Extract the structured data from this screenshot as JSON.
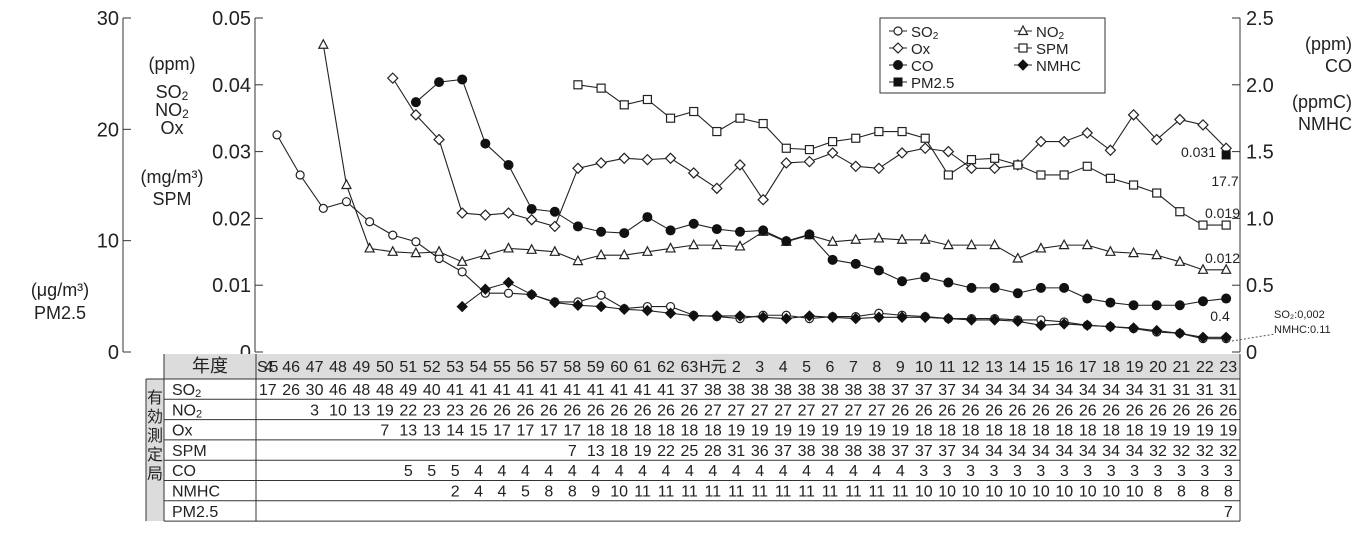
{
  "chart_data": {
    "type": "line",
    "axes": {
      "outer_left": {
        "ticks": [
          "0",
          "10",
          "20",
          "30"
        ],
        "range": [
          0,
          30
        ],
        "unit_label": "(μg/m³)",
        "series_label": "PM2.5"
      },
      "inner_left": {
        "ticks": [
          "0",
          "0.01",
          "0.02",
          "0.03",
          "0.04",
          "0.05"
        ],
        "range": [
          0,
          0.05
        ],
        "unit_label_ppm": "(ppm)",
        "series_labels_ppm": [
          "SO2",
          "NO2",
          "Ox"
        ],
        "unit_label_mg": "(mg/m³)",
        "series_label_mg": "SPM"
      },
      "right": {
        "ticks": [
          "0",
          "0.5",
          "1.0",
          "1.5",
          "2.0",
          "2.5"
        ],
        "range": [
          0,
          2.5
        ],
        "unit_label_co": "(ppm)",
        "series_label_co": "CO",
        "unit_label_nmhc": "(ppmC)",
        "series_label_nmhc": "NMHC"
      }
    },
    "x": [
      "S45",
      "46",
      "47",
      "48",
      "49",
      "50",
      "51",
      "52",
      "53",
      "54",
      "55",
      "56",
      "57",
      "58",
      "59",
      "60",
      "61",
      "62",
      "63",
      "H元",
      "2",
      "3",
      "4",
      "5",
      "6",
      "7",
      "8",
      "9",
      "10",
      "11",
      "12",
      "13",
      "14",
      "15",
      "16",
      "17",
      "18",
      "19",
      "20",
      "21",
      "22",
      "23"
    ],
    "legend": [
      "SO2",
      "NO2",
      "Ox",
      "SPM",
      "CO",
      "NMHC",
      "PM2.5"
    ],
    "legend_position": "top-right",
    "series": [
      {
        "name": "SO2",
        "axis": "inner_left",
        "marker": "circle-open",
        "values": [
          0.0325,
          0.0265,
          0.0215,
          0.0225,
          0.0195,
          0.0175,
          0.0165,
          0.014,
          0.012,
          0.0088,
          0.0088,
          0.0086,
          0.0075,
          0.0075,
          0.0085,
          0.0065,
          0.0068,
          0.0068,
          0.0055,
          0.0053,
          0.005,
          0.0055,
          0.0055,
          0.005,
          0.0053,
          0.0053,
          0.0058,
          0.0055,
          0.0053,
          0.005,
          0.005,
          0.005,
          0.0048,
          0.0048,
          0.0045,
          0.004,
          0.0038,
          0.0035,
          0.003,
          0.0028,
          0.002,
          0.002
        ]
      },
      {
        "name": "NO2",
        "axis": "inner_left",
        "marker": "triangle-open",
        "values": [
          null,
          null,
          0.046,
          0.025,
          0.0155,
          0.015,
          0.0148,
          0.015,
          0.0135,
          0.0145,
          0.0155,
          0.0153,
          0.015,
          0.0136,
          0.0145,
          0.0145,
          0.015,
          0.0155,
          0.016,
          0.016,
          0.0158,
          0.018,
          0.0165,
          0.0175,
          0.0165,
          0.0168,
          0.017,
          0.0168,
          0.0168,
          0.016,
          0.016,
          0.016,
          0.014,
          0.0155,
          0.016,
          0.016,
          0.015,
          0.0148,
          0.0145,
          0.0135,
          0.0123,
          0.0123
        ]
      },
      {
        "name": "Ox",
        "axis": "inner_left",
        "marker": "diamond-open",
        "values": [
          null,
          null,
          null,
          null,
          null,
          0.041,
          0.0355,
          0.0318,
          0.0208,
          0.0205,
          0.0208,
          0.0198,
          0.0188,
          0.0275,
          0.0283,
          0.029,
          0.0288,
          0.029,
          0.0268,
          0.0245,
          0.028,
          0.0228,
          0.0283,
          0.0285,
          0.0298,
          0.0278,
          0.0275,
          0.0298,
          0.0305,
          0.03,
          0.0275,
          0.0275,
          0.028,
          0.0315,
          0.0315,
          0.0328,
          0.0302,
          0.0355,
          0.0318,
          0.0348,
          0.034,
          0.0305
        ]
      },
      {
        "name": "SPM",
        "axis": "inner_left",
        "marker": "square-open",
        "values": [
          null,
          null,
          null,
          null,
          null,
          null,
          null,
          null,
          null,
          null,
          null,
          null,
          null,
          0.04,
          0.0395,
          0.037,
          0.0378,
          0.035,
          0.036,
          0.033,
          0.035,
          0.0342,
          0.0305,
          0.0303,
          0.0315,
          0.032,
          0.033,
          0.033,
          0.032,
          0.0265,
          0.0288,
          0.029,
          0.028,
          0.0265,
          0.0265,
          0.0278,
          0.026,
          0.025,
          0.0238,
          0.021,
          0.019,
          0.019
        ]
      },
      {
        "name": "CO",
        "axis": "right",
        "marker": "circle-filled",
        "values": [
          null,
          null,
          null,
          null,
          null,
          null,
          1.87,
          2.02,
          2.04,
          1.56,
          1.4,
          1.07,
          1.05,
          0.94,
          0.9,
          0.89,
          1.01,
          0.91,
          0.96,
          0.92,
          0.9,
          0.91,
          0.83,
          0.88,
          0.69,
          0.66,
          0.61,
          0.53,
          0.56,
          0.52,
          0.48,
          0.48,
          0.44,
          0.48,
          0.48,
          0.4,
          0.37,
          0.35,
          0.35,
          0.35,
          0.38,
          0.4
        ]
      },
      {
        "name": "NMHC",
        "axis": "right",
        "marker": "diamond-filled",
        "values": [
          null,
          null,
          null,
          null,
          null,
          null,
          null,
          null,
          0.34,
          0.47,
          0.52,
          0.43,
          0.37,
          0.35,
          0.34,
          0.32,
          0.31,
          0.29,
          0.27,
          0.27,
          0.27,
          0.26,
          0.25,
          0.27,
          0.26,
          0.25,
          0.26,
          0.26,
          0.26,
          0.25,
          0.24,
          0.24,
          0.23,
          0.2,
          0.21,
          0.2,
          0.19,
          0.18,
          0.16,
          0.14,
          0.11,
          0.11
        ]
      },
      {
        "name": "PM2.5",
        "axis": "outer_left",
        "marker": "square-filled",
        "values": [
          null,
          null,
          null,
          null,
          null,
          null,
          null,
          null,
          null,
          null,
          null,
          null,
          null,
          null,
          null,
          null,
          null,
          null,
          null,
          null,
          null,
          null,
          null,
          null,
          null,
          null,
          null,
          null,
          null,
          null,
          null,
          null,
          null,
          null,
          null,
          null,
          null,
          null,
          null,
          null,
          null,
          17.7
        ]
      }
    ],
    "annotations": {
      "ox_last": "0.031",
      "pm25_last": "17.7",
      "spm_last": "0.019",
      "no2_last": "0.012",
      "co_last": "0.4",
      "so2_nmhc_1": "SO₂:0,002",
      "so2_nmhc_2": "NMHC:0.11"
    }
  },
  "table": {
    "header_label": "年度",
    "side_label": "有効測定局",
    "rows": [
      {
        "label": "SO2",
        "values": [
          "17",
          "26",
          "30",
          "46",
          "48",
          "48",
          "49",
          "40",
          "41",
          "41",
          "41",
          "41",
          "41",
          "41",
          "41",
          "41",
          "41",
          "41",
          "37",
          "38",
          "38",
          "38",
          "38",
          "38",
          "38",
          "38",
          "38",
          "37",
          "37",
          "37",
          "34",
          "34",
          "34",
          "34",
          "34",
          "34",
          "34",
          "34",
          "31",
          "31",
          "31",
          "31"
        ]
      },
      {
        "label": "NO2",
        "values": [
          "",
          "",
          "3",
          "10",
          "13",
          "19",
          "22",
          "23",
          "23",
          "26",
          "26",
          "26",
          "26",
          "26",
          "26",
          "26",
          "26",
          "26",
          "26",
          "27",
          "27",
          "27",
          "27",
          "27",
          "27",
          "27",
          "27",
          "26",
          "26",
          "26",
          "26",
          "26",
          "26",
          "26",
          "26",
          "26",
          "26",
          "26",
          "26",
          "26",
          "26",
          "26"
        ]
      },
      {
        "label": "Ox",
        "values": [
          "",
          "",
          "",
          "",
          "",
          "7",
          "13",
          "13",
          "14",
          "15",
          "17",
          "17",
          "17",
          "17",
          "18",
          "18",
          "18",
          "18",
          "18",
          "18",
          "19",
          "19",
          "19",
          "19",
          "19",
          "19",
          "19",
          "19",
          "18",
          "18",
          "18",
          "18",
          "18",
          "18",
          "18",
          "18",
          "18",
          "18",
          "19",
          "19",
          "19",
          "19"
        ]
      },
      {
        "label": "SPM",
        "values": [
          "",
          "",
          "",
          "",
          "",
          "",
          "",
          "",
          "",
          "",
          "",
          "",
          "",
          "7",
          "13",
          "18",
          "19",
          "22",
          "25",
          "28",
          "31",
          "36",
          "37",
          "38",
          "38",
          "38",
          "38",
          "37",
          "37",
          "37",
          "34",
          "34",
          "34",
          "34",
          "34",
          "34",
          "34",
          "34",
          "32",
          "32",
          "32",
          "32"
        ]
      },
      {
        "label": "CO",
        "values": [
          "",
          "",
          "",
          "",
          "",
          "",
          "5",
          "5",
          "5",
          "4",
          "4",
          "4",
          "4",
          "4",
          "4",
          "4",
          "4",
          "4",
          "4",
          "4",
          "4",
          "4",
          "4",
          "4",
          "4",
          "4",
          "4",
          "4",
          "3",
          "3",
          "3",
          "3",
          "3",
          "3",
          "3",
          "3",
          "3",
          "3",
          "3",
          "3",
          "3",
          "3"
        ]
      },
      {
        "label": "NMHC",
        "values": [
          "",
          "",
          "",
          "",
          "",
          "",
          "",
          "",
          "2",
          "4",
          "4",
          "5",
          "8",
          "8",
          "9",
          "10",
          "11",
          "11",
          "11",
          "11",
          "11",
          "11",
          "11",
          "11",
          "11",
          "11",
          "11",
          "11",
          "10",
          "10",
          "10",
          "10",
          "10",
          "10",
          "10",
          "10",
          "10",
          "10",
          "8",
          "8",
          "8",
          "8"
        ]
      },
      {
        "label": "PM2.5",
        "values": [
          "",
          "",
          "",
          "",
          "",
          "",
          "",
          "",
          "",
          "",
          "",
          "",
          "",
          "",
          "",
          "",
          "",
          "",
          "",
          "",
          "",
          "",
          "",
          "",
          "",
          "",
          "",
          "",
          "",
          "",
          "",
          "",
          "",
          "",
          "",
          "",
          "",
          "",
          "",
          "",
          "",
          "7"
        ]
      }
    ]
  }
}
